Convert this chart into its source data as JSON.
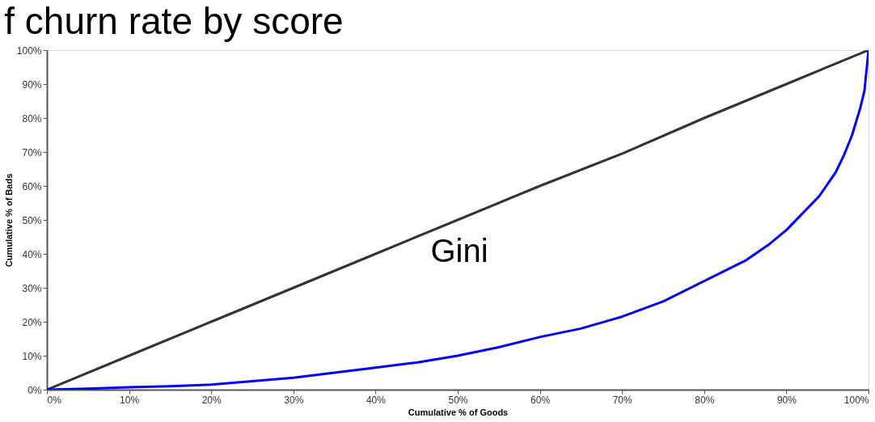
{
  "chart_data": {
    "type": "line",
    "title": "f churn rate by score",
    "xlabel": "Cumulative % of Goods",
    "ylabel": "Cumulative % of Bads",
    "xlim": [
      0,
      100
    ],
    "ylim": [
      0,
      100
    ],
    "xticks": [
      {
        "value": 0,
        "label": "0%"
      },
      {
        "value": 10,
        "label": "10%"
      },
      {
        "value": 20,
        "label": "20%"
      },
      {
        "value": 30,
        "label": "30%"
      },
      {
        "value": 40,
        "label": "40%"
      },
      {
        "value": 50,
        "label": "50%"
      },
      {
        "value": 60,
        "label": "60%"
      },
      {
        "value": 70,
        "label": "70%"
      },
      {
        "value": 80,
        "label": "80%"
      },
      {
        "value": 90,
        "label": "90%"
      },
      {
        "value": 100,
        "label": "100%"
      }
    ],
    "yticks": [
      {
        "value": 0,
        "label": "0%"
      },
      {
        "value": 10,
        "label": "10%"
      },
      {
        "value": 20,
        "label": "20%"
      },
      {
        "value": 30,
        "label": "30%"
      },
      {
        "value": 40,
        "label": "40%"
      },
      {
        "value": 50,
        "label": "50%"
      },
      {
        "value": 60,
        "label": "60%"
      },
      {
        "value": 70,
        "label": "70%"
      },
      {
        "value": 80,
        "label": "80%"
      },
      {
        "value": 90,
        "label": "90%"
      },
      {
        "value": 100,
        "label": "100%"
      }
    ],
    "grid": false,
    "marker": "none",
    "line_style": "solid",
    "annotations": [
      "Gini"
    ],
    "series": [
      {
        "color": "#333333",
        "x": [
          0,
          10,
          20,
          30,
          40,
          50,
          60,
          70,
          80,
          90,
          100
        ],
        "values": [
          0,
          10,
          20,
          30,
          40,
          50,
          60,
          69.5,
          80,
          90,
          100
        ]
      },
      {
        "color": "#0000ff",
        "x": [
          0,
          5,
          10,
          15,
          20,
          25,
          30,
          35,
          40,
          45,
          50,
          55,
          60,
          65,
          70,
          75,
          80,
          85,
          88,
          90,
          92,
          94,
          95,
          96,
          97,
          98,
          99,
          99.5,
          100
        ],
        "values": [
          0,
          0.3,
          0.7,
          1,
          1.5,
          2.5,
          3.5,
          5,
          6.5,
          8,
          10,
          12.5,
          15.5,
          18,
          21.5,
          26,
          32,
          38,
          43,
          47,
          52,
          57,
          60.5,
          64,
          69,
          75,
          83,
          88,
          100
        ]
      }
    ]
  }
}
